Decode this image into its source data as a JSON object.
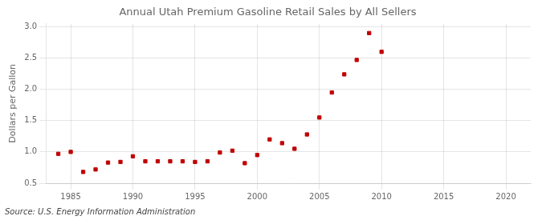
{
  "chart_data": {
    "type": "scatter",
    "title": "Annual Utah Premium Gasoline Retail Sales by All Sellers",
    "ylabel": "Dollars per Gallon",
    "source": "Source: U.S. Energy Information Administration",
    "color": "#c00000",
    "marker": "square",
    "grid": true,
    "xlim": [
      1983,
      2022
    ],
    "ylim": [
      0.5,
      3.05
    ],
    "xticks": [
      1985,
      1990,
      1995,
      2000,
      2005,
      2010,
      2015,
      2020
    ],
    "yticks": [
      0.5,
      {
        "value": 1.0,
        "label": "1.0"
      },
      1.5,
      {
        "value": 2.0,
        "label": "2.0"
      },
      2.5,
      {
        "value": 3.0,
        "label": "3.0"
      }
    ],
    "x": [
      1984,
      1985,
      1986,
      1987,
      1988,
      1989,
      1990,
      1991,
      1992,
      1993,
      1994,
      1995,
      1996,
      1997,
      1998,
      1999,
      2000,
      2001,
      2002,
      2003,
      2004,
      2005,
      2006,
      2007,
      2008,
      2009,
      2010
    ],
    "values": [
      0.97,
      1.0,
      0.68,
      0.72,
      0.83,
      0.84,
      0.93,
      0.85,
      0.85,
      0.85,
      0.85,
      0.84,
      0.85,
      0.99,
      1.02,
      0.82,
      0.95,
      1.2,
      1.14,
      1.05,
      1.28,
      1.55,
      1.95,
      2.24,
      2.47,
      2.9,
      2.6
    ]
  }
}
